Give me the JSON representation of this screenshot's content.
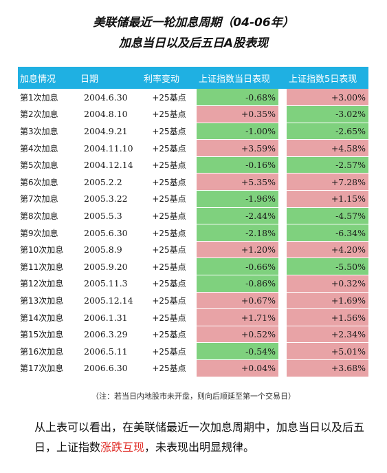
{
  "title_line1": "美联储最近一轮加息周期（04-06年）",
  "title_line2": "加息当日以及后五日A股表现",
  "table": {
    "headers": [
      "加息情况",
      "日期",
      "利率变动",
      "上证指数当日表现",
      "上证指数5日表现"
    ],
    "rows": [
      {
        "label": "第1次加息",
        "date": "2004.6.30",
        "change": "+25基点",
        "day": "-0.68%",
        "day5": "+3.00%",
        "day_up": false,
        "day5_up": true
      },
      {
        "label": "第2次加息",
        "date": "2004.8.10",
        "change": "+25基点",
        "day": "+0.35%",
        "day5": "-3.02%",
        "day_up": true,
        "day5_up": false
      },
      {
        "label": "第3次加息",
        "date": "2004.9.21",
        "change": "+25基点",
        "day": "-1.00%",
        "day5": "-2.65%",
        "day_up": false,
        "day5_up": false
      },
      {
        "label": "第4次加息",
        "date": "2004.11.10",
        "change": "+25基点",
        "day": "+3.59%",
        "day5": "+4.58%",
        "day_up": true,
        "day5_up": true
      },
      {
        "label": "第5次加息",
        "date": "2004.12.14",
        "change": "+25基点",
        "day": "-0.16%",
        "day5": "-2.57%",
        "day_up": false,
        "day5_up": false
      },
      {
        "label": "第6次加息",
        "date": "2005.2.2",
        "change": "+25基点",
        "day": "+5.35%",
        "day5": "+7.28%",
        "day_up": true,
        "day5_up": true
      },
      {
        "label": "第7次加息",
        "date": "2005.3.22",
        "change": "+25基点",
        "day": "-1.96%",
        "day5": "+1.15%",
        "day_up": false,
        "day5_up": true
      },
      {
        "label": "第8次加息",
        "date": "2005.5.3",
        "change": "+25基点",
        "day": "-2.44%",
        "day5": "-4.57%",
        "day_up": false,
        "day5_up": false
      },
      {
        "label": "第9次加息",
        "date": "2005.6.30",
        "change": "+25基点",
        "day": "-2.18%",
        "day5": "-6.34%",
        "day_up": false,
        "day5_up": false
      },
      {
        "label": "第10次加息",
        "date": "2005.8.9",
        "change": "+25基点",
        "day": "+1.20%",
        "day5": "+4.20%",
        "day_up": true,
        "day5_up": true
      },
      {
        "label": "第11次加息",
        "date": "2005.9.20",
        "change": "+25基点",
        "day": "-0.66%",
        "day5": "-5.50%",
        "day_up": false,
        "day5_up": false
      },
      {
        "label": "第12次加息",
        "date": "2005.11.3",
        "change": "+25基点",
        "day": "-0.86%",
        "day5": "+0.32%",
        "day_up": false,
        "day5_up": true
      },
      {
        "label": "第13次加息",
        "date": "2005.12.14",
        "change": "+25基点",
        "day": "+0.67%",
        "day5": "+1.69%",
        "day_up": true,
        "day5_up": true
      },
      {
        "label": "第14次加息",
        "date": "2006.1.31",
        "change": "+25基点",
        "day": "+1.71%",
        "day5": "+1.56%",
        "day_up": true,
        "day5_up": true
      },
      {
        "label": "第15次加息",
        "date": "2006.3.29",
        "change": "+25基点",
        "day": "+0.52%",
        "day5": "+2.34%",
        "day_up": true,
        "day5_up": true
      },
      {
        "label": "第16次加息",
        "date": "2006.5.11",
        "change": "+25基点",
        "day": "-0.54%",
        "day5": "+5.01%",
        "day_up": false,
        "day5_up": true
      },
      {
        "label": "第17次加息",
        "date": "2006.6.30",
        "change": "+25基点",
        "day": "+0.04%",
        "day5": "+3.68%",
        "day_up": true,
        "day5_up": true
      }
    ]
  },
  "note": "（注：若当日内地股市未开盘，则向后顺延至第一个交易日）",
  "summary": {
    "before": "从上表可以看出，在美联储最近一次加息周期中，加息当日以及后五日，上证指数",
    "highlight": "涨跌互现",
    "after": "，未表现出明显规律。"
  },
  "colors": {
    "header_bg": "#1fb0e2",
    "up": "#e8a3a6",
    "down": "#7fd17e",
    "highlight": "#e0312b"
  }
}
